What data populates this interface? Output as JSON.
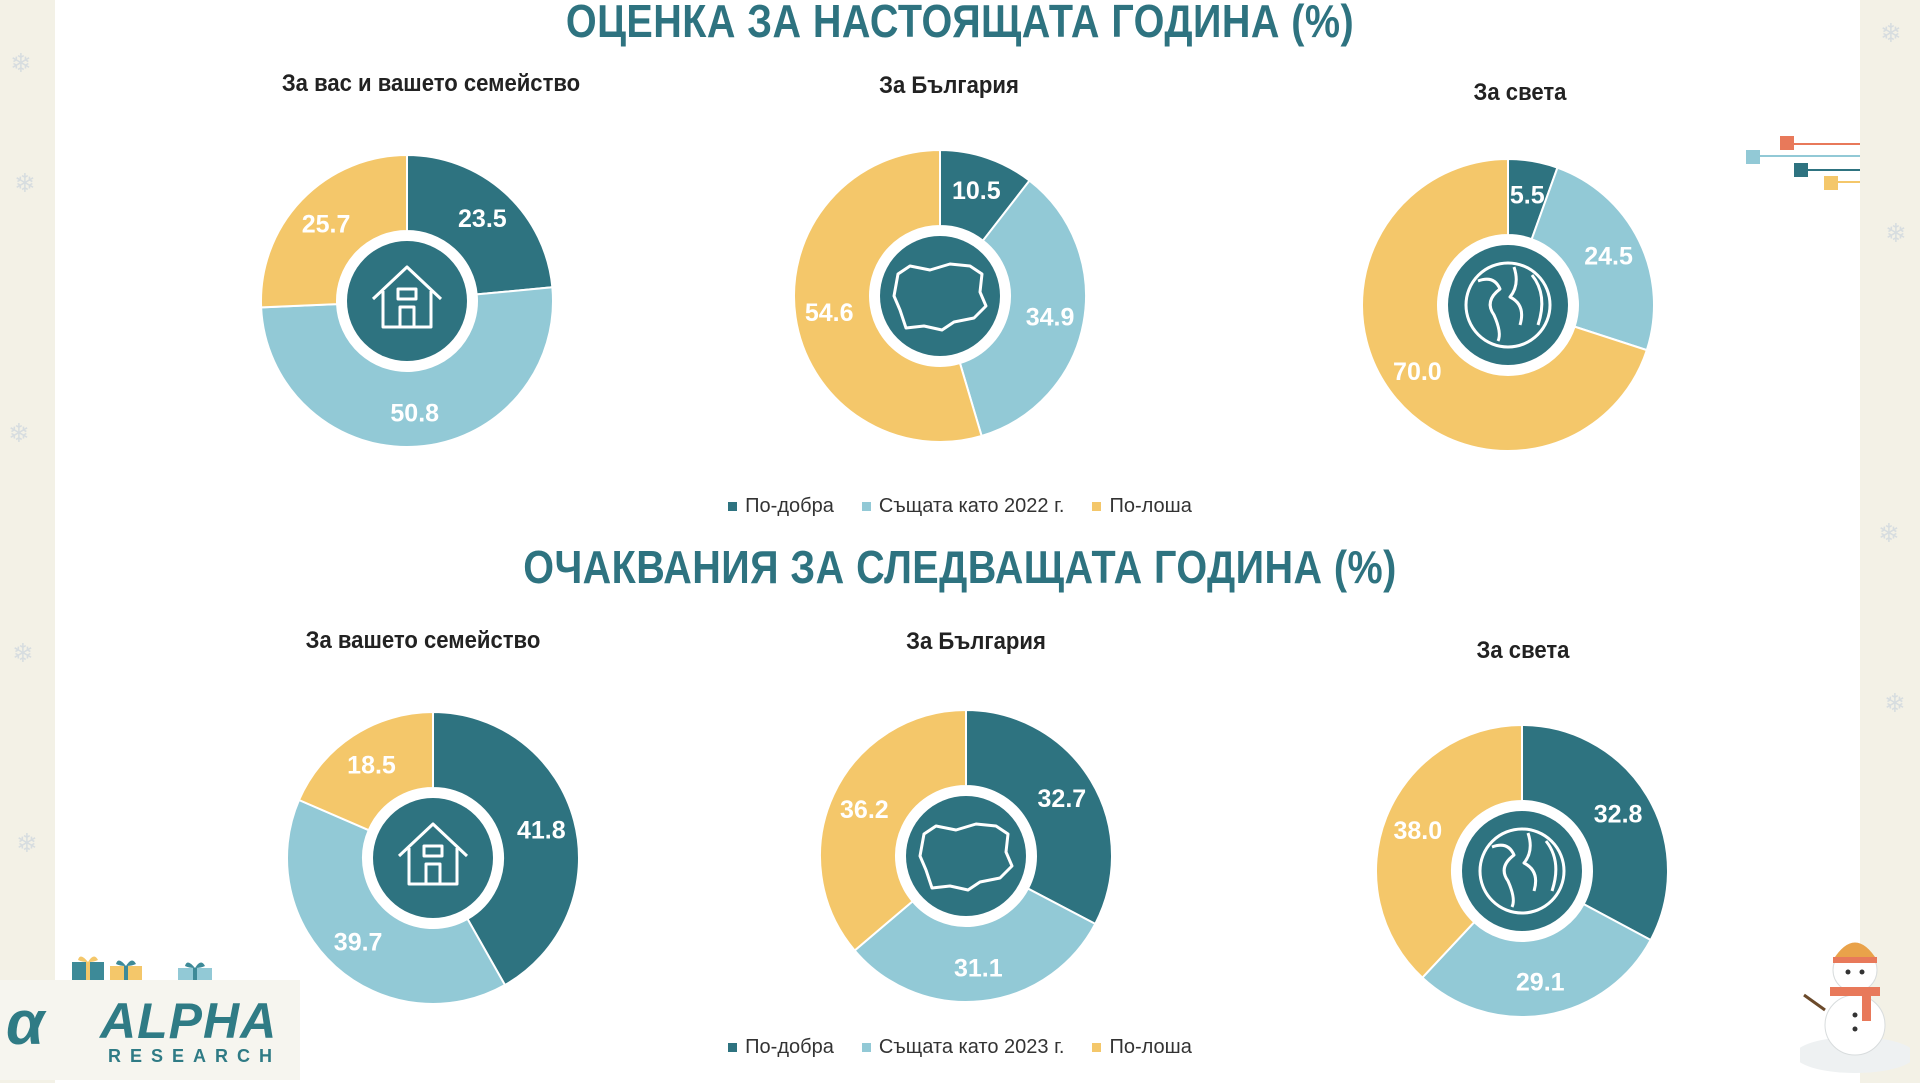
{
  "sections": [
    {
      "title": "ОЦЕНКА ЗА НАСТОЯЩАТА ГОДИНА (%)",
      "legend": [
        {
          "label": "По-добра",
          "color": "#2e7380"
        },
        {
          "label": "Същата като 2022 г.",
          "color": "#92c9d6"
        },
        {
          "label": "По-лоша",
          "color": "#f4c76a"
        }
      ]
    },
    {
      "title": "ОЧАКВАНИЯ ЗА СЛЕДВАЩАТА ГОДИНА (%)",
      "legend": [
        {
          "label": "По-добра",
          "color": "#2e7380"
        },
        {
          "label": "Същата като 2023 г.",
          "color": "#92c9d6"
        },
        {
          "label": "По-лоша",
          "color": "#f4c76a"
        }
      ]
    }
  ],
  "chart_data": [
    {
      "type": "pie",
      "title": "За вас и вашето семейство",
      "icon": "house-icon",
      "categories": [
        "По-добра",
        "Същата като 2022 г.",
        "По-лоша"
      ],
      "values": [
        23.5,
        50.8,
        25.7
      ]
    },
    {
      "type": "pie",
      "title": "За България",
      "icon": "bulgaria-map-icon",
      "categories": [
        "По-добра",
        "Същата като 2022 г.",
        "По-лоша"
      ],
      "values": [
        10.5,
        34.9,
        54.6
      ]
    },
    {
      "type": "pie",
      "title": "За света",
      "icon": "globe-icon",
      "categories": [
        "По-добра",
        "Същата като 2022 г.",
        "По-лоша"
      ],
      "values": [
        5.5,
        24.5,
        70.0
      ]
    },
    {
      "type": "pie",
      "title": "За вашето семейство",
      "icon": "house-icon",
      "categories": [
        "По-добра",
        "Същата като 2023 г.",
        "По-лоша"
      ],
      "values": [
        41.8,
        39.7,
        18.5
      ]
    },
    {
      "type": "pie",
      "title": "За България",
      "icon": "bulgaria-map-icon",
      "categories": [
        "По-добра",
        "Същата като 2023 г.",
        "По-лоша"
      ],
      "values": [
        32.7,
        31.1,
        36.2
      ]
    },
    {
      "type": "pie",
      "title": "За света",
      "icon": "globe-icon",
      "categories": [
        "По-добра",
        "Същата като 2023 г.",
        "По-лоша"
      ],
      "values": [
        32.8,
        29.1,
        38.0
      ]
    }
  ],
  "logo": {
    "name": "ALPHA",
    "sub": "RESEARCH"
  }
}
